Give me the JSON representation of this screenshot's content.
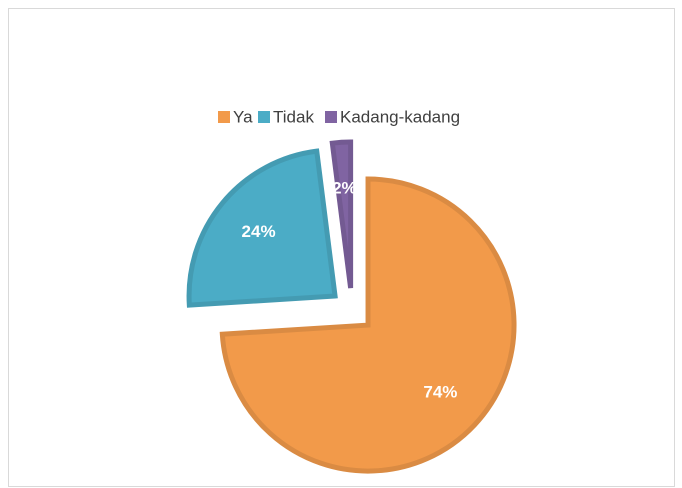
{
  "chart_data": {
    "type": "pie",
    "categories": [
      "Ya",
      "Tidak",
      "Kadang-kadang"
    ],
    "values": [
      74,
      24,
      2
    ],
    "value_labels": [
      "74%",
      "24%",
      "2%"
    ],
    "colors": [
      "#f29a4a",
      "#4bacc6",
      "#8064a2"
    ],
    "legend": "top"
  }
}
